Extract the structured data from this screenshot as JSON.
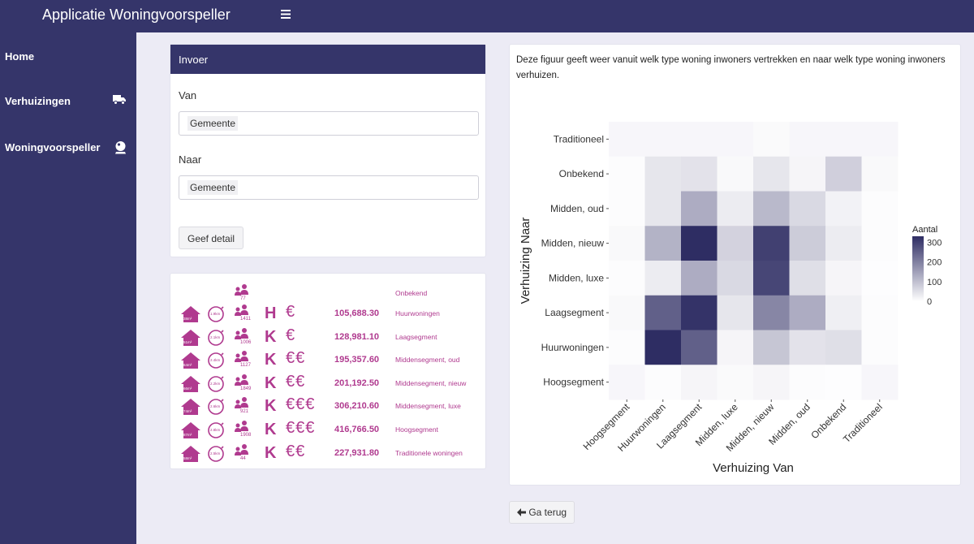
{
  "app": {
    "title": "Applicatie Woningvoorspeller",
    "menu_icon": "hamburger-icon"
  },
  "sidebar": {
    "items": [
      {
        "label": "Home",
        "icon": ""
      },
      {
        "label": "Verhuizingen",
        "icon": "truck-icon"
      },
      {
        "label": "Woningvoorspeller",
        "icon": "crystal-ball-icon"
      }
    ]
  },
  "invoer": {
    "title": "Invoer",
    "van_label": "Van",
    "van_value": "Gemeente",
    "naar_label": "Naar",
    "naar_value": "Gemeente",
    "button_label": "Geef detail"
  },
  "stats": {
    "header": {
      "count": "77",
      "segment": "Onbekend"
    },
    "rows": [
      {
        "house": "38m²",
        "circle": "1.9km",
        "count": "1411",
        "tenure": "H",
        "euro": "€",
        "price": "105,688.30",
        "segment": "Huurwoningen"
      },
      {
        "house": "51m²",
        "circle": "2.1km",
        "count": "1006",
        "tenure": "K",
        "euro": "€",
        "price": "128,981.10",
        "segment": "Laagsegment"
      },
      {
        "house": "64m²",
        "circle": "2.4km",
        "count": "1127",
        "tenure": "K",
        "euro": "€€",
        "price": "195,357.60",
        "segment": "Middensegment, oud"
      },
      {
        "house": "66m²",
        "circle": "2.2km",
        "count": "1849",
        "tenure": "K",
        "euro": "€€",
        "price": "201,192.50",
        "segment": "Middensegment, nieuw"
      },
      {
        "house": "74m²",
        "circle": "2.6km",
        "count": "921",
        "tenure": "K",
        "euro": "€€€",
        "price": "306,210.60",
        "segment": "Middensegment, luxe"
      },
      {
        "house": "87m²",
        "circle": "2.8km",
        "count": "1908",
        "tenure": "K",
        "euro": "€€€",
        "price": "416,766.50",
        "segment": "Hoogsegment"
      },
      {
        "house": "58m²",
        "circle": "2.5km",
        "count": "44",
        "tenure": "K",
        "euro": "€€",
        "price": "227,931.80",
        "segment": "Traditionele woningen"
      }
    ]
  },
  "chart": {
    "description": "Deze figuur geeft weer vanuit welk type woning inwoners vertrekken en naar welk type woning inwoners verhuizen."
  },
  "chart_data": {
    "type": "heatmap",
    "title": "",
    "xlabel": "Verhuizing Van",
    "ylabel": "Verhuizing Naar",
    "x": [
      "Hoogsegment",
      "Huurwoningen",
      "Laagsegment",
      "Midden, luxe",
      "Midden, nieuw",
      "Midden, oud",
      "Onbekend",
      "Traditioneel"
    ],
    "y": [
      "Traditioneel",
      "Onbekend",
      "Midden, oud",
      "Midden, nieuw",
      "Midden, luxe",
      "Laagsegment",
      "Huurwoningen",
      "Hoogsegment"
    ],
    "z": [
      [
        0,
        0,
        0,
        0,
        8,
        0,
        0,
        0
      ],
      [
        5,
        40,
        45,
        10,
        40,
        15,
        75,
        10
      ],
      [
        5,
        40,
        130,
        30,
        110,
        60,
        20,
        5
      ],
      [
        10,
        120,
        330,
        70,
        300,
        80,
        30,
        5
      ],
      [
        5,
        30,
        130,
        60,
        290,
        50,
        15,
        3
      ],
      [
        10,
        250,
        320,
        40,
        190,
        130,
        25,
        5
      ],
      [
        5,
        330,
        250,
        15,
        90,
        45,
        50,
        5
      ],
      [
        0,
        5,
        15,
        8,
        15,
        5,
        3,
        0
      ]
    ],
    "colorbar": {
      "title": "Aantal",
      "ticks": [
        0,
        100,
        200,
        300
      ],
      "range": [
        0,
        330
      ],
      "low_color": "#ffffff",
      "high_color": "#2e2d63"
    },
    "background": "#ebebeb"
  },
  "footer": {
    "back_label": "Ga terug",
    "back_icon": "arrow-left-icon"
  },
  "colors": {
    "brand": "#35356a",
    "accent": "#b03a8f",
    "background": "#ecebf5"
  }
}
